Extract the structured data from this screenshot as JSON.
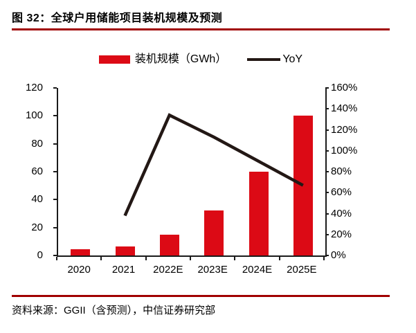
{
  "page": {
    "title": "图 32：全球户用储能项目装机规模及预测",
    "source_note": "资料来源：GGII（含预测），中信证券研究部"
  },
  "colors": {
    "bar_red": "#DC0A15",
    "rule_dark_red": "#A00000",
    "line_black": "#231815",
    "axis_black": "#1A1A1A"
  },
  "legend": {
    "items": [
      {
        "label": "装机规模（GWh）",
        "swatch": "bar"
      },
      {
        "label": "YoY",
        "swatch": "line"
      }
    ]
  },
  "chart_data": {
    "type": "bar",
    "combo": [
      "bar",
      "line"
    ],
    "title": "全球户用储能项目装机规模及预测",
    "categories": [
      "2020",
      "2021",
      "2022E",
      "2023E",
      "2024E",
      "2025E"
    ],
    "series": [
      {
        "name": "装机规模（GWh）",
        "type": "bar",
        "axis": "left",
        "values": [
          4.5,
          6.5,
          15,
          32,
          60,
          100
        ]
      },
      {
        "name": "YoY",
        "type": "line",
        "axis": "right",
        "values": [
          null,
          38,
          134,
          113,
          90,
          67
        ]
      }
    ],
    "left_axis": {
      "min": 0,
      "max": 120,
      "step": 20,
      "ticks": [
        "120",
        "100",
        "80",
        "60",
        "40",
        "20",
        "0"
      ]
    },
    "right_axis": {
      "min": 0,
      "max": 160,
      "step": 20,
      "ticks": [
        "160%",
        "140%",
        "120%",
        "100%",
        "80%",
        "60%",
        "40%",
        "20%",
        "0%"
      ]
    },
    "grid": false,
    "legend_position": "top"
  }
}
